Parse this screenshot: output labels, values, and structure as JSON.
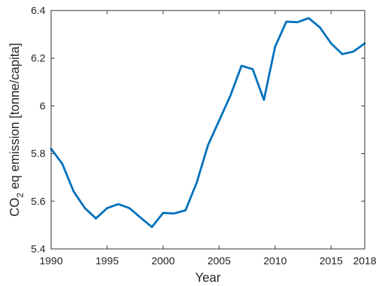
{
  "chart_data": {
    "type": "line",
    "xlabel": "Year",
    "ylabel": {
      "prefix": "CO",
      "subscript": "2",
      "suffix": " eq emission [tonne/capita]"
    },
    "xlim": [
      1990,
      2018
    ],
    "ylim": [
      5.4,
      6.4
    ],
    "xticks": [
      1990,
      1995,
      2000,
      2005,
      2010,
      2015,
      2018
    ],
    "xtick_labels": [
      "1990",
      "1995",
      "2000",
      "2005",
      "2010",
      "2015",
      "2018"
    ],
    "yticks": [
      5.4,
      5.6,
      5.8,
      6.0,
      6.2,
      6.4
    ],
    "ytick_labels": [
      "5.4",
      "5.6",
      "5.8",
      "6",
      "6.2",
      "6.4"
    ],
    "grid": false,
    "series": [
      {
        "color": "#0072BD",
        "x": [
          1990,
          1991,
          1992,
          1993,
          1994,
          1995,
          1996,
          1997,
          1998,
          1999,
          2000,
          2001,
          2002,
          2003,
          2004,
          2005,
          2006,
          2007,
          2008,
          2009,
          2010,
          2011,
          2012,
          2013,
          2014,
          2015,
          2016,
          2017,
          2018
        ],
        "y": [
          5.82,
          5.757,
          5.642,
          5.572,
          5.528,
          5.571,
          5.588,
          5.571,
          5.531,
          5.492,
          5.551,
          5.549,
          5.562,
          5.678,
          5.834,
          5.938,
          6.042,
          6.168,
          6.154,
          6.025,
          6.248,
          6.353,
          6.351,
          6.368,
          6.329,
          6.262,
          6.217,
          6.228,
          6.262
        ]
      }
    ]
  }
}
